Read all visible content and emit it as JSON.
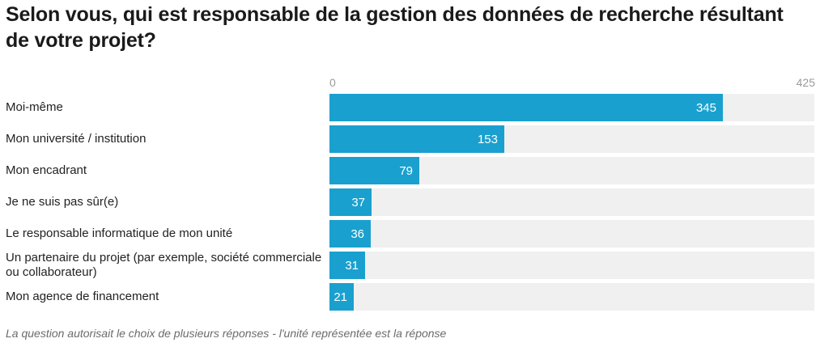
{
  "chart_data": {
    "type": "bar",
    "orientation": "horizontal",
    "title": "Selon vous, qui est responsable de la gestion des données de recherche résultant de votre projet?",
    "xlim": [
      0,
      425
    ],
    "tick_labels": [
      "0",
      "425"
    ],
    "categories": [
      "Moi-même",
      "Mon université / institution",
      "Mon encadrant",
      "Je ne suis pas sûr(e)",
      "Le responsable informatique de mon unité",
      "Un partenaire du projet (par exemple, société commerciale ou collaborateur)",
      "Mon agence de financement"
    ],
    "values": [
      345,
      153,
      79,
      37,
      36,
      31,
      21
    ],
    "bar_color": "#1aa0cf",
    "track_color": "#f0f0f0",
    "grid": false,
    "footnote": "La question autorisait le choix de plusieurs réponses - l'unité représentée est la réponse"
  }
}
